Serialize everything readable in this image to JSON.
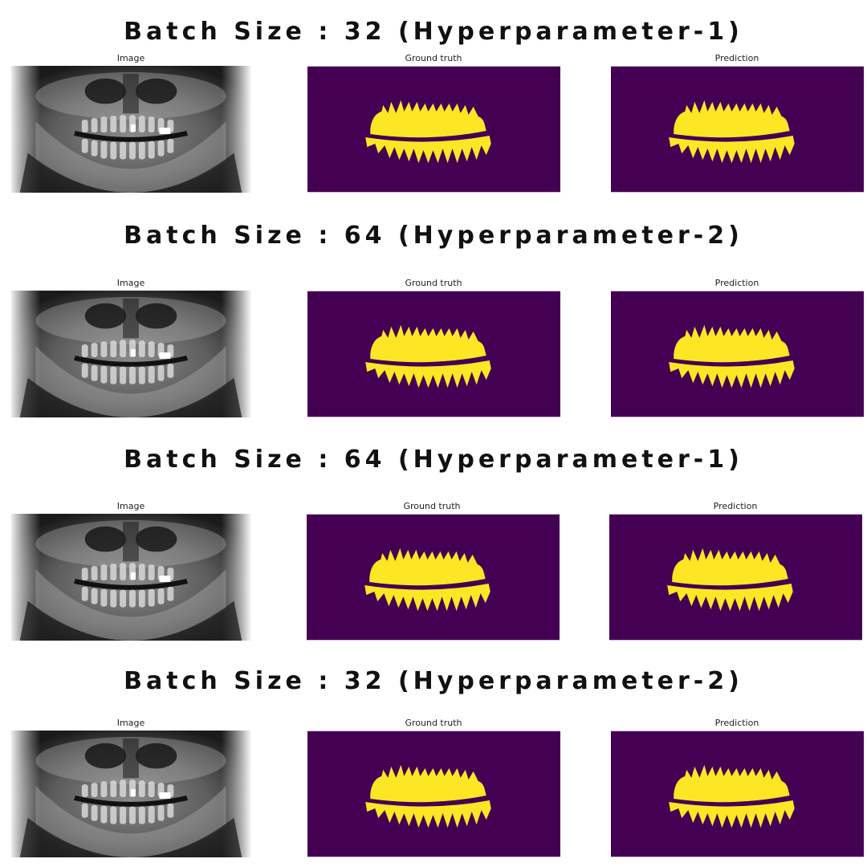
{
  "colors": {
    "mask_background": "#440154",
    "mask_foreground": "#fde725",
    "heading_text": "#111111"
  },
  "panel_titles": {
    "image": "Image",
    "ground_truth": "Ground truth",
    "prediction": "Prediction"
  },
  "sections": [
    {
      "heading": "Batch Size : 32 (Hyperparameter-1)"
    },
    {
      "heading": "Batch Size : 64 (Hyperparameter-2)"
    },
    {
      "heading": "Batch Size : 64 (Hyperparameter-1)"
    },
    {
      "heading": "Batch Size : 32 (Hyperparameter-2)"
    }
  ]
}
